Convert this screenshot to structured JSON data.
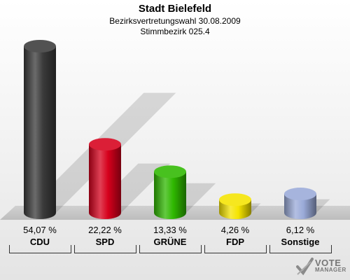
{
  "chart_data": {
    "type": "bar",
    "title": "Stadt Bielefeld",
    "subtitle": "Bezirksvertretungswahl 30.08.2009",
    "subtitle2": "Stimmbezirk 025.4",
    "categories": [
      "CDU",
      "SPD",
      "GRÜNE",
      "FDP",
      "Sonstige"
    ],
    "values": [
      54.07,
      22.22,
      13.33,
      4.26,
      6.12
    ],
    "value_labels": [
      "54,07 %",
      "22,22 %",
      "13,33 %",
      "4,26 %",
      "6,12 %"
    ],
    "colors": [
      "#3a3a3a",
      "#d6001c",
      "#2fb800",
      "#f5e400",
      "#9aaad8"
    ],
    "ylim": [
      0,
      54.07
    ],
    "grid": false,
    "legend": "none"
  },
  "logo": {
    "word1": "VOTE",
    "word2": "MANAGER"
  }
}
